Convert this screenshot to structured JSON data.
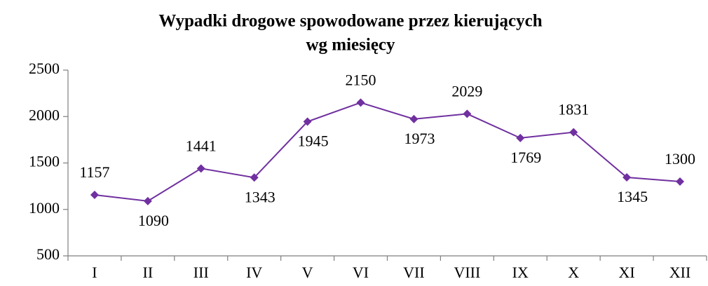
{
  "chart_data": {
    "type": "line",
    "title": [
      "Wypadki drogowe spowodowane przez kierujących",
      "wg miesięcy"
    ],
    "categories": [
      "I",
      "II",
      "III",
      "IV",
      "V",
      "VI",
      "VII",
      "VIII",
      "IX",
      "X",
      "XI",
      "XII"
    ],
    "values": [
      1157,
      1090,
      1441,
      1343,
      1945,
      2150,
      1973,
      2029,
      1769,
      1831,
      1345,
      1300
    ],
    "color": "#7030a0",
    "ylim": [
      500,
      2500
    ],
    "yticks": [
      500,
      1000,
      1500,
      2000,
      2500
    ],
    "grid": false
  }
}
